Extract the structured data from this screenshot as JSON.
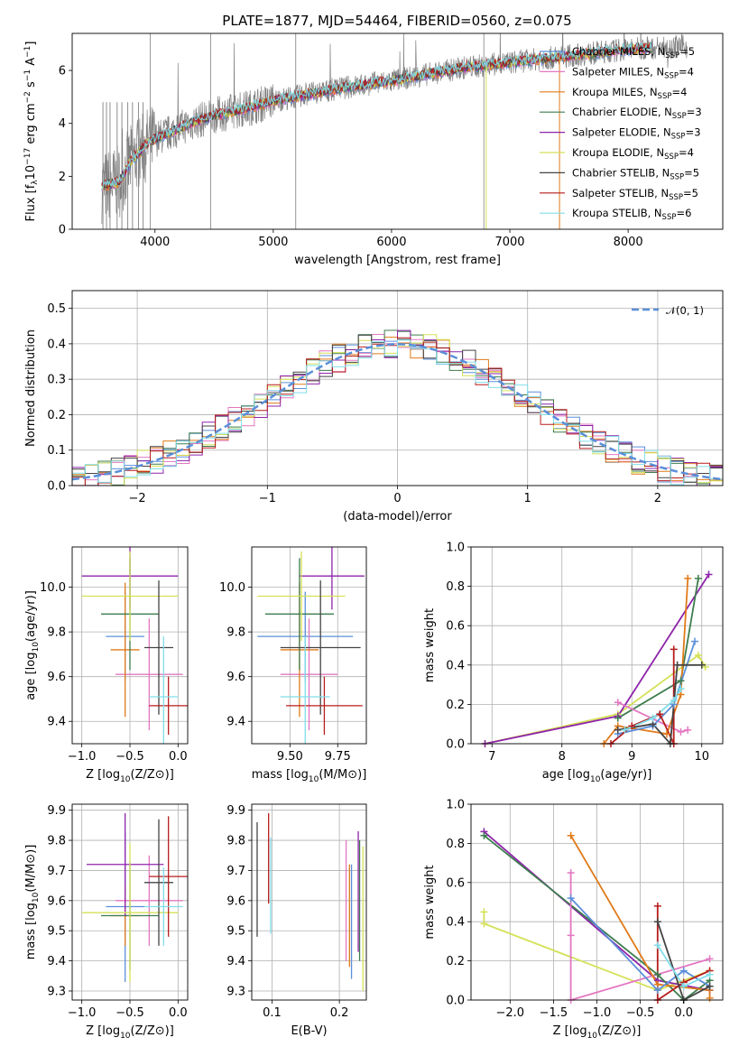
{
  "title": "PLATE=1877, MJD=54464, FIBERID=0560, z=0.075",
  "colors": {
    "chabrier_miles": "#5b8fd9",
    "salpeter_miles": "#e377c2",
    "kroupa_miles": "#e07b1a",
    "chabrier_elodie": "#3e7d4e",
    "salpeter_elodie": "#8e24aa",
    "kroupa_elodie": "#d4e157",
    "chabrier_stelib": "#444444",
    "salpeter_stelib": "#b71c1c",
    "kroupa_stelib": "#80deea",
    "data": "#808080",
    "normal_curve": "#5b8fd9"
  },
  "chart_data": [
    {
      "type": "line",
      "title": "PLATE=1877, MJD=54464, FIBERID=0560, z=0.075",
      "xlabel": "wavelength [Angstrom, rest frame]",
      "ylabel": "Flux [fλ10⁻¹⁷ erg cm⁻² s⁻¹ A⁻¹]",
      "xlim": [
        3300,
        8800
      ],
      "ylim": [
        0,
        7.4
      ],
      "xticks": [
        4000,
        5000,
        6000,
        7000,
        8000
      ],
      "yticks": [
        0,
        2,
        4,
        6
      ],
      "legend_position": "right",
      "legend": [
        {
          "label": "Chabrier MILES, N",
          "sub": "SSP",
          "val": "=5",
          "color": "chabrier_miles"
        },
        {
          "label": "Salpeter MILES, N",
          "sub": "SSP",
          "val": "=4",
          "color": "salpeter_miles"
        },
        {
          "label": "Kroupa MILES, N",
          "sub": "SSP",
          "val": "=4",
          "color": "kroupa_miles"
        },
        {
          "label": "Chabrier ELODIE, N",
          "sub": "SSP",
          "val": "=3",
          "color": "chabrier_elodie"
        },
        {
          "label": "Salpeter ELODIE, N",
          "sub": "SSP",
          "val": "=3",
          "color": "salpeter_elodie"
        },
        {
          "label": "Kroupa ELODIE, N",
          "sub": "SSP",
          "val": "=4",
          "color": "kroupa_elodie"
        },
        {
          "label": "Chabrier STELIB, N",
          "sub": "SSP",
          "val": "=5",
          "color": "chabrier_stelib"
        },
        {
          "label": "Salpeter STELIB, N",
          "sub": "SSP",
          "val": "=5",
          "color": "salpeter_stelib"
        },
        {
          "label": "Kroupa STELIB, N",
          "sub": "SSP",
          "val": "=6",
          "color": "kroupa_stelib"
        }
      ],
      "continuum": {
        "x": [
          3550,
          3700,
          3800,
          3950,
          4100,
          4300,
          4500,
          4800,
          5000,
          5300,
          5600,
          6000,
          6300,
          6600,
          7000,
          7300,
          7600,
          8000,
          8400,
          8800
        ],
        "y": [
          1.6,
          1.8,
          2.6,
          3.3,
          3.6,
          4.0,
          4.3,
          4.6,
          4.85,
          5.1,
          5.35,
          5.6,
          5.85,
          6.1,
          6.3,
          6.45,
          6.6,
          6.8,
          6.9,
          6.95
        ]
      }
    },
    {
      "type": "line",
      "xlabel": "(data-model)/error",
      "ylabel": "Normed distribution",
      "xlim": [
        -2.5,
        2.5
      ],
      "ylim": [
        0,
        0.55
      ],
      "xticks": [
        -2,
        -1,
        0,
        1,
        2
      ],
      "yticks": [
        0.0,
        0.1,
        0.2,
        0.3,
        0.4,
        0.5
      ],
      "legend": "𝒩(0, 1)",
      "legend_position": "top-right",
      "grid": true
    },
    {
      "type": "scatter",
      "xlabel": "Z [log10(Z/Z⊙)]",
      "ylabel": "age  [log10(age/yr)]",
      "xlim": [
        -1.1,
        0.1
      ],
      "ylim": [
        9.3,
        10.18
      ],
      "xticks": [
        -1.0,
        -0.5,
        0.0
      ],
      "yticks": [
        9.4,
        9.6,
        9.8,
        10.0
      ],
      "grid": true,
      "points": [
        {
          "color": "chabrier_miles",
          "x": -0.55,
          "xerr": 0.2,
          "y": 9.78,
          "yerr": 0.2
        },
        {
          "color": "salpeter_miles",
          "x": -0.3,
          "xerr": 0.35,
          "y": 9.61,
          "yerr": 0.25
        },
        {
          "color": "kroupa_miles",
          "x": -0.55,
          "xerr": 0.15,
          "y": 9.72,
          "yerr": 0.3
        },
        {
          "color": "chabrier_elodie",
          "x": -0.5,
          "xerr": 0.3,
          "y": 9.88,
          "yerr": 0.25
        },
        {
          "color": "salpeter_elodie",
          "x": -0.5,
          "xerr": 0.5,
          "y": 10.05,
          "yerr": 0.15
        },
        {
          "color": "kroupa_elodie",
          "x": -0.5,
          "xerr": 0.5,
          "y": 9.96,
          "yerr": 0.2
        },
        {
          "color": "chabrier_stelib",
          "x": -0.2,
          "xerr": 0.15,
          "y": 9.73,
          "yerr": 0.3
        },
        {
          "color": "salpeter_stelib",
          "x": -0.1,
          "xerr": 0.2,
          "y": 9.47,
          "yerr": 0.13
        },
        {
          "color": "kroupa_stelib",
          "x": -0.15,
          "xerr": 0.15,
          "y": 9.51,
          "yerr": 0.27
        }
      ]
    },
    {
      "type": "scatter",
      "xlabel": "mass [log10(M/M⊙)]",
      "ylabel": "",
      "xlim": [
        9.3,
        9.9
      ],
      "ylim": [
        9.3,
        10.18
      ],
      "xticks": [
        9.5,
        9.75
      ],
      "yticks": [
        9.4,
        9.6,
        9.8,
        10.0
      ],
      "grid": true,
      "points": [
        {
          "color": "chabrier_miles",
          "x": 9.58,
          "xerr": 0.25,
          "y": 9.78,
          "yerr": 0.2
        },
        {
          "color": "salpeter_miles",
          "x": 9.6,
          "xerr": 0.15,
          "y": 9.61,
          "yerr": 0.25
        },
        {
          "color": "kroupa_miles",
          "x": 9.55,
          "xerr": 0.1,
          "y": 9.72,
          "yerr": 0.3
        },
        {
          "color": "chabrier_elodie",
          "x": 9.55,
          "xerr": 0.18,
          "y": 9.88,
          "yerr": 0.25
        },
        {
          "color": "salpeter_elodie",
          "x": 9.72,
          "xerr": 0.17,
          "y": 10.05,
          "yerr": 0.15
        },
        {
          "color": "kroupa_elodie",
          "x": 9.56,
          "xerr": 0.23,
          "y": 9.96,
          "yerr": 0.2
        },
        {
          "color": "chabrier_stelib",
          "x": 9.66,
          "xerr": 0.21,
          "y": 9.73,
          "yerr": 0.3
        },
        {
          "color": "salpeter_stelib",
          "x": 9.68,
          "xerr": 0.2,
          "y": 9.47,
          "yerr": 0.13
        },
        {
          "color": "kroupa_stelib",
          "x": 9.58,
          "xerr": 0.13,
          "y": 9.51,
          "yerr": 0.27
        }
      ]
    },
    {
      "type": "line",
      "xlabel": "age  [log10(age/yr)]",
      "ylabel": "mass weight",
      "xlim": [
        6.7,
        10.3
      ],
      "ylim": [
        0,
        1.0
      ],
      "xticks": [
        7,
        8,
        9,
        10
      ],
      "yticks": [
        0.0,
        0.2,
        0.4,
        0.6,
        0.8,
        1.0
      ],
      "grid": true,
      "series": [
        {
          "color": "kroupa_elodie",
          "x": [
            6.9,
            8.8,
            9.95,
            10.05
          ],
          "y": [
            0.0,
            0.15,
            0.45,
            0.39
          ]
        },
        {
          "color": "salpeter_elodie",
          "x": [
            6.9,
            8.8,
            10.1
          ],
          "y": [
            0.0,
            0.14,
            0.86
          ]
        },
        {
          "color": "chabrier_elodie",
          "x": [
            8.8,
            9.7,
            9.95
          ],
          "y": [
            0.13,
            0.32,
            0.84
          ]
        },
        {
          "color": "salpeter_miles",
          "x": [
            8.8,
            9.7,
            9.8
          ],
          "y": [
            0.21,
            0.06,
            0.07
          ]
        },
        {
          "color": "kroupa_miles",
          "x": [
            8.6,
            8.8,
            9.5,
            9.7,
            9.8
          ],
          "y": [
            0.0,
            0.09,
            0.05,
            0.25,
            0.84
          ]
        },
        {
          "color": "chabrier_miles",
          "x": [
            8.8,
            9.3,
            9.6,
            9.9
          ],
          "y": [
            0.05,
            0.09,
            0.2,
            0.52
          ]
        },
        {
          "color": "salpeter_stelib",
          "x": [
            8.7,
            9.0,
            9.4,
            9.6,
            9.6
          ],
          "y": [
            0.0,
            0.09,
            0.15,
            0.0,
            0.48
          ]
        },
        {
          "color": "chabrier_stelib",
          "x": [
            8.8,
            9.3,
            9.55,
            9.65,
            10.0
          ],
          "y": [
            0.07,
            0.1,
            0.0,
            0.4,
            0.4
          ]
        },
        {
          "color": "kroupa_stelib",
          "x": [
            8.9,
            9.3,
            9.6,
            9.7
          ],
          "y": [
            0.07,
            0.13,
            0.22,
            0.28
          ]
        }
      ]
    },
    {
      "type": "scatter",
      "xlabel": "Z [log10(Z/Z⊙)]",
      "ylabel": "mass [log10(M/M⊙)]",
      "xlim": [
        -1.1,
        0.1
      ],
      "ylim": [
        9.27,
        9.92
      ],
      "xticks": [
        -1.0,
        -0.5,
        0.0
      ],
      "yticks": [
        9.3,
        9.4,
        9.5,
        9.6,
        9.7,
        9.8,
        9.9
      ],
      "grid": true,
      "points": [
        {
          "color": "chabrier_miles",
          "x": -0.55,
          "xerr": 0.2,
          "y": 9.58,
          "yerr": 0.25
        },
        {
          "color": "salpeter_miles",
          "x": -0.3,
          "xerr": 0.35,
          "y": 9.6,
          "yerr": 0.15
        },
        {
          "color": "kroupa_miles",
          "x": -0.55,
          "xerr": 0.15,
          "y": 9.55,
          "yerr": 0.1
        },
        {
          "color": "chabrier_elodie",
          "x": -0.5,
          "xerr": 0.3,
          "y": 9.55,
          "yerr": 0.18
        },
        {
          "color": "salpeter_elodie",
          "x": -0.55,
          "xerr": 0.4,
          "y": 9.72,
          "yerr": 0.17
        },
        {
          "color": "kroupa_elodie",
          "x": -0.5,
          "xerr": 0.5,
          "y": 9.56,
          "yerr": 0.23
        },
        {
          "color": "chabrier_stelib",
          "x": -0.2,
          "xerr": 0.15,
          "y": 9.66,
          "yerr": 0.21
        },
        {
          "color": "salpeter_stelib",
          "x": -0.1,
          "xerr": 0.2,
          "y": 9.68,
          "yerr": 0.2
        },
        {
          "color": "kroupa_stelib",
          "x": -0.15,
          "xerr": 0.2,
          "y": 9.58,
          "yerr": 0.13
        }
      ]
    },
    {
      "type": "scatter",
      "xlabel": "E(B-V)",
      "ylabel": "",
      "xlim": [
        0.07,
        0.24
      ],
      "ylim": [
        9.27,
        9.92
      ],
      "xticks": [
        0.1,
        0.2
      ],
      "yticks": [
        9.3,
        9.4,
        9.5,
        9.6,
        9.7,
        9.8,
        9.9
      ],
      "grid": true,
      "points": [
        {
          "color": "chabrier_miles",
          "x": 0.218,
          "xerr": 0,
          "y": 9.53,
          "yerr": 0.19
        },
        {
          "color": "salpeter_miles",
          "x": 0.21,
          "xerr": 0,
          "y": 9.6,
          "yerr": 0.2
        },
        {
          "color": "kroupa_miles",
          "x": 0.215,
          "xerr": 0,
          "y": 9.55,
          "yerr": 0.17
        },
        {
          "color": "chabrier_elodie",
          "x": 0.23,
          "xerr": 0,
          "y": 9.6,
          "yerr": 0.2
        },
        {
          "color": "salpeter_elodie",
          "x": 0.228,
          "xerr": 0,
          "y": 9.63,
          "yerr": 0.2
        },
        {
          "color": "kroupa_elodie",
          "x": 0.235,
          "xerr": 0,
          "y": 9.54,
          "yerr": 0.24
        },
        {
          "color": "chabrier_stelib",
          "x": 0.078,
          "xerr": 0,
          "y": 9.67,
          "yerr": 0.19
        },
        {
          "color": "salpeter_stelib",
          "x": 0.095,
          "xerr": 0,
          "y": 9.74,
          "yerr": 0.15
        },
        {
          "color": "kroupa_stelib",
          "x": 0.098,
          "xerr": 0,
          "y": 9.65,
          "yerr": 0.16
        }
      ]
    },
    {
      "type": "line",
      "xlabel": "Z [log10(Z/Z⊙)]",
      "ylabel": "mass weight",
      "xlim": [
        -2.45,
        0.45
      ],
      "ylim": [
        0,
        1.0
      ],
      "xticks": [
        -2.0,
        -1.5,
        -1.0,
        -0.5,
        0.0
      ],
      "yticks": [
        0.0,
        0.2,
        0.4,
        0.6,
        0.8,
        1.0
      ],
      "grid": true,
      "series": [
        {
          "color": "kroupa_elodie",
          "x": [
            -2.3,
            -2.3,
            -0.3,
            0.3
          ],
          "y": [
            0.45,
            0.39,
            0.05,
            0.15
          ]
        },
        {
          "color": "salpeter_elodie",
          "x": [
            -2.3,
            -0.3,
            0.3
          ],
          "y": [
            0.86,
            0.1,
            0.05
          ]
        },
        {
          "color": "chabrier_elodie",
          "x": [
            -2.3,
            -0.3,
            0.0,
            0.3
          ],
          "y": [
            0.84,
            0.13,
            0.0,
            0.1
          ]
        },
        {
          "color": "salpeter_miles",
          "x": [
            -1.3,
            -1.3,
            -1.3,
            0.3
          ],
          "y": [
            0.65,
            0.33,
            0.0,
            0.21
          ]
        },
        {
          "color": "kroupa_miles",
          "x": [
            -1.3,
            -0.3,
            0.3,
            0.3
          ],
          "y": [
            0.84,
            0.08,
            0.05,
            0.01
          ]
        },
        {
          "color": "chabrier_miles",
          "x": [
            -1.3,
            -0.3,
            0.0,
            0.3
          ],
          "y": [
            0.52,
            0.05,
            0.15,
            0.07
          ]
        },
        {
          "color": "salpeter_stelib",
          "x": [
            -0.3,
            -0.3,
            0.0,
            0.3
          ],
          "y": [
            0.48,
            0.0,
            0.09,
            0.15
          ]
        },
        {
          "color": "chabrier_stelib",
          "x": [
            -0.3,
            0.0,
            0.3
          ],
          "y": [
            0.4,
            0.0,
            0.07
          ]
        },
        {
          "color": "kroupa_stelib",
          "x": [
            -0.3,
            0.0,
            0.3
          ],
          "y": [
            0.28,
            0.07,
            0.13
          ]
        }
      ]
    }
  ]
}
